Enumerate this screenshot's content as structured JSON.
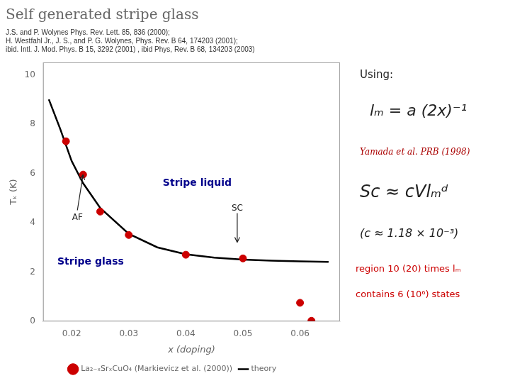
{
  "chart_data": {
    "type": "scatter",
    "title": "Self generated stripe glass",
    "subtitle": [
      "J.S. and P. Wolynes Phys. Rev. Lett. 85, 836 (2000);",
      "H. Westfahl Jr., J. S., and P. G. Wolynes, Phys. Rev. B 64, 174203 (2001);",
      "ibid. Intl. J. Mod. Phys. B 15, 3292 (2001) , ibid Phys, Rev. B 68, 134203 (2003)"
    ],
    "x_label": "x (doping)",
    "y_label": "Tₖ (K)",
    "series": [
      {
        "name": "La₂₋ₓSrₓCuO₄ (Markievicz et al. (2000))",
        "type": "scatter",
        "color": "#CC0000",
        "marker": "circle",
        "x": [
          0.019,
          0.022,
          0.025,
          0.03,
          0.04,
          0.05,
          0.06,
          0.062
        ],
        "values": [
          7.3,
          5.95,
          4.45,
          3.5,
          2.7,
          2.55,
          0.75,
          0.02
        ]
      },
      {
        "name": "theory",
        "type": "line",
        "color": "#000000",
        "line_style": "solid",
        "x": [
          0.016,
          0.018,
          0.02,
          0.022,
          0.025,
          0.03,
          0.035,
          0.04,
          0.045,
          0.05,
          0.055,
          0.06,
          0.065
        ],
        "values": [
          9.0,
          7.8,
          6.5,
          5.6,
          4.6,
          3.55,
          3.0,
          2.72,
          2.58,
          2.5,
          2.46,
          2.43,
          2.41
        ]
      }
    ],
    "xlim": [
      0.015,
      0.067
    ],
    "xticks": [
      0.02,
      0.03,
      0.04,
      0.05,
      0.06
    ],
    "ylim": [
      0,
      10.5
    ],
    "yticks": [
      0,
      2,
      4,
      6,
      8,
      10
    ],
    "grid": false,
    "legend": "bottom",
    "annotations": [
      {
        "text": "AF",
        "x": 0.021,
        "y": 4.1,
        "arrow_x": 0.022,
        "arrow_y": 5.95
      },
      {
        "text": "SC",
        "x": 0.049,
        "y": 4.5,
        "arrow_x": 0.049,
        "arrow_y": 3.2
      },
      {
        "text": "Stripe liquid",
        "x": 0.042,
        "y": 5.5,
        "color": "#00008B"
      },
      {
        "text": "Stripe glass",
        "x": 0.0175,
        "y": 2.3,
        "color": "#00008B"
      },
      {
        "text": "Using:"
      },
      {
        "text": "lₘ = a (2x)⁻¹"
      },
      {
        "text": "Yamada et al. PRB (1998)",
        "color": "#AA0000"
      },
      {
        "text": "Sc ≈ cVlₘᵈ"
      },
      {
        "text": "(c ≈ 1.18 × 10⁻³)"
      },
      {
        "text": "region 10 (20) times lₘ",
        "color": "#CC0000"
      },
      {
        "text": "contains 6 (10⁶) states",
        "color": "#CC0000"
      }
    ]
  }
}
